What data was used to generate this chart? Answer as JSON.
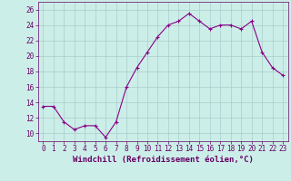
{
  "x": [
    0,
    1,
    2,
    3,
    4,
    5,
    6,
    7,
    8,
    9,
    10,
    11,
    12,
    13,
    14,
    15,
    16,
    17,
    18,
    19,
    20,
    21,
    22,
    23
  ],
  "y": [
    13.5,
    13.5,
    11.5,
    10.5,
    11.0,
    11.0,
    9.5,
    11.5,
    16.0,
    18.5,
    20.5,
    22.5,
    24.0,
    24.5,
    25.5,
    24.5,
    23.5,
    24.0,
    24.0,
    23.5,
    24.5,
    20.5,
    18.5,
    17.5
  ],
  "line_color": "#880088",
  "marker": "+",
  "bg_color": "#cceee8",
  "grid_color": "#aacccc",
  "xlabel": "Windchill (Refroidissement éolien,°C)",
  "xlim": [
    -0.5,
    23.5
  ],
  "ylim": [
    9.0,
    27.0
  ],
  "yticks": [
    10,
    12,
    14,
    16,
    18,
    20,
    22,
    24,
    26
  ],
  "xticks": [
    0,
    1,
    2,
    3,
    4,
    5,
    6,
    7,
    8,
    9,
    10,
    11,
    12,
    13,
    14,
    15,
    16,
    17,
    18,
    19,
    20,
    21,
    22,
    23
  ],
  "xtick_labels": [
    "0",
    "1",
    "2",
    "3",
    "4",
    "5",
    "6",
    "7",
    "8",
    "9",
    "10",
    "11",
    "12",
    "13",
    "14",
    "15",
    "16",
    "17",
    "18",
    "19",
    "20",
    "21",
    "22",
    "23"
  ],
  "font_color": "#660066",
  "tick_fontsize": 5.5,
  "xlabel_fontsize": 6.5,
  "linewidth": 0.8,
  "markersize": 3,
  "markeredgewidth": 0.8
}
